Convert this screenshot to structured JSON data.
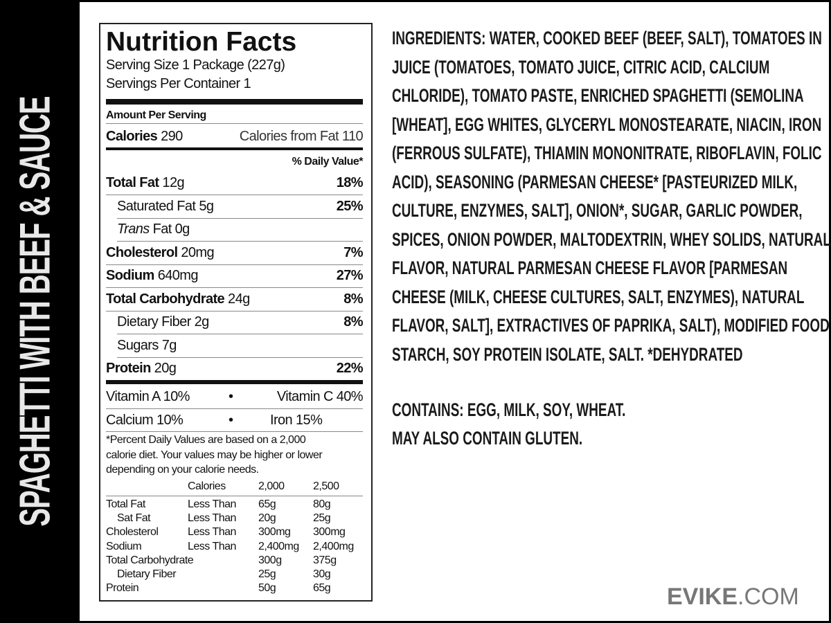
{
  "side_title": "SPAGHETTI WITH BEEF & SAUCE",
  "label": {
    "title": "Nutrition Facts",
    "serving_size": "Serving Size 1 Package (227g)",
    "servings_per": "Servings Per Container 1",
    "amount_per": "Amount Per Serving",
    "calories_label": "Calories",
    "calories": "290",
    "calories_fat": "Calories from Fat 110",
    "dv_header": "% Daily Value*",
    "rows": [
      {
        "name": "Total Fat",
        "amount": "12g",
        "dv": "18%"
      },
      {
        "name": "Saturated Fat",
        "amount": "5g",
        "dv": "25%"
      },
      {
        "name": "Trans",
        "suffix": "Fat 0g",
        "dv": ""
      },
      {
        "name": "Cholesterol",
        "amount": "20mg",
        "dv": "7%"
      },
      {
        "name": "Sodium",
        "amount": "640mg",
        "dv": "27%"
      },
      {
        "name": "Total Carbohydrate",
        "amount": "24g",
        "dv": "8%"
      },
      {
        "name": "Dietary Fiber",
        "amount": "2g",
        "dv": "8%"
      },
      {
        "name": "Sugars",
        "amount": "7g",
        "dv": ""
      },
      {
        "name": "Protein",
        "amount": "20g",
        "dv": "22%"
      }
    ],
    "vitamin_a": "Vitamin A  10%",
    "vitamin_c": "Vitamin C  40%",
    "calcium": "Calcium  10%",
    "iron": "Iron 15%",
    "bullet": "•",
    "footnote": [
      "*Percent Daily Values are based on a 2,000",
      "calorie diet. Your values may be higher or lower",
      "depending on your calorie needs."
    ],
    "table_header": [
      "Calories",
      "2,000",
      "2,500"
    ],
    "table": [
      [
        "Total Fat",
        "Less Than",
        "65g",
        "80g"
      ],
      [
        "Sat Fat",
        "Less Than",
        "20g",
        "25g"
      ],
      [
        "Cholesterol",
        "Less Than",
        "300mg",
        "300mg"
      ],
      [
        "Sodium",
        "Less Than",
        "2,400mg",
        "2,400mg"
      ],
      [
        "Total Carbohydrate",
        "",
        "300g",
        "375g"
      ],
      [
        "Dietary Fiber",
        "",
        "25g",
        "30g"
      ],
      [
        "Protein",
        "",
        "50g",
        "65g"
      ]
    ]
  },
  "ingredients": {
    "label": "INGREDIENTS:",
    "lines": [
      "WATER, COOKED BEEF (BEEF, SALT), TOMATOES IN",
      "JUICE (TOMATOES, TOMATO JUICE, CITRIC ACID, CALCIUM",
      "CHLORIDE), TOMATO PASTE, ENRICHED SPAGHETTI (SEMOLINA",
      "[WHEAT], EGG WHITES, GLYCERYL MONOSTEARATE, NIACIN, IRON",
      "(FERROUS SULFATE), THIAMIN MONONITRATE, RIBOFLAVIN, FOLIC",
      "ACID), SEASONING (PARMESAN CHEESE* [PASTEURIZED MILK,",
      "CULTURE, ENZYMES, SALT], ONION*, SUGAR, GARLIC POWDER,",
      "SPICES, ONION POWDER, MALTODEXTRIN, WHEY SOLIDS, NATURAL",
      "FLAVOR, NATURAL PARMESAN CHEESE FLAVOR [PARMESAN",
      "CHEESE (MILK, CHEESE CULTURES, SALT, ENZYMES), NATURAL",
      "FLAVOR, SALT], EXTRACTIVES OF PAPRIKA, SALT), MODIFIED FOOD",
      "STARCH, SOY PROTEIN ISOLATE, SALT. *DEHYDRATED"
    ],
    "contains": "CONTAINS: EGG, MILK, SOY, WHEAT.",
    "may_contain": "MAY ALSO CONTAIN GLUTEN."
  },
  "logo": {
    "bold": "EVIKE",
    "rest": ".COM"
  }
}
